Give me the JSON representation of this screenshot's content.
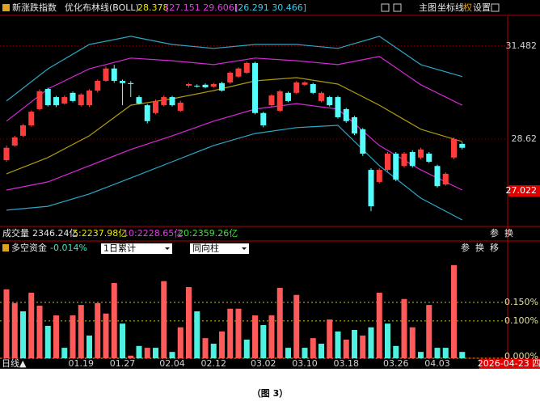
{
  "header": {
    "title": "新涨跌指数",
    "indicator": "优化布林线(BOLL)",
    "mid_value": "28.378",
    "inner_band": "[27.151 29.606]",
    "outer_band": "[26.291 30.466]",
    "tools": [
      "主图",
      "坐标线",
      "权",
      "设置"
    ]
  },
  "volume_row": {
    "label": "成交量",
    "items": [
      {
        "text": "2346.24亿",
        "color": "#e8e8e8"
      },
      {
        "text": "5:2237.98亿",
        "color": "#e8e800"
      },
      {
        "text": "10:2228.65亿",
        "color": "#e040e0"
      },
      {
        "text": "20:2359.26亿",
        "color": "#40e040"
      }
    ],
    "tools": [
      "参",
      "换"
    ]
  },
  "fund_header": {
    "title": "多空资金",
    "value": "-0.014%",
    "dropdowns": [
      "1日累计",
      "同向柱"
    ],
    "tools": [
      "参",
      "换",
      "移"
    ]
  },
  "footer": {
    "period": "日线▲",
    "date": "2026-04-23 四",
    "caption": "（图 3）"
  },
  "chart_data": [
    {
      "type": "candlestick",
      "up_color": "#ff3c3c",
      "down_color": "#54fcfc",
      "open": [
        27.97,
        28.42,
        28.72,
        29.04,
        29.54,
        30.16,
        29.91,
        29.71,
        30.04,
        29.66,
        29.66,
        30.11,
        30.41,
        30.79,
        30.41,
        30.34,
        29.91,
        29.66,
        29.42,
        29.66,
        29.91,
        29.49,
        30.26,
        30.26,
        30.29,
        30.23,
        30.34,
        30.36,
        30.54,
        30.66,
        30.96,
        29.42,
        29.66,
        29.49,
        30.04,
        30.04,
        30.29,
        30.31,
        29.79,
        29.91,
        29.91,
        29.54,
        29.29,
        28.92,
        27.67,
        27.3,
        27.67,
        28.17,
        27.79,
        28.22,
        28.05,
        28.17,
        27.79,
        27.22,
        28.05,
        28.47
      ],
      "close": [
        28.35,
        28.67,
        29.04,
        29.46,
        30.09,
        29.66,
        29.66,
        29.91,
        29.79,
        29.99,
        30.11,
        30.41,
        30.79,
        30.41,
        30.34,
        30.31,
        29.71,
        29.17,
        29.79,
        29.91,
        29.66,
        29.74,
        30.31,
        30.24,
        30.21,
        30.31,
        30.11,
        30.66,
        30.79,
        30.96,
        29.42,
        29.04,
        29.96,
        30.09,
        29.79,
        30.36,
        30.36,
        30.04,
        30.04,
        29.66,
        29.29,
        29.17,
        28.79,
        28.17,
        26.55,
        27.67,
        28.17,
        27.37,
        28.17,
        27.79,
        28.3,
        27.92,
        27.17,
        27.55,
        28.62,
        28.35
      ],
      "high": [
        28.42,
        28.72,
        29.08,
        29.5,
        30.15,
        30.2,
        29.95,
        29.96,
        30.08,
        30.03,
        30.15,
        30.45,
        30.85,
        30.9,
        30.45,
        30.4,
        29.96,
        29.7,
        29.84,
        29.96,
        29.95,
        29.8,
        30.35,
        30.3,
        30.33,
        30.35,
        30.38,
        30.7,
        30.83,
        31.0,
        31.0,
        29.46,
        30.0,
        30.13,
        30.08,
        30.4,
        30.4,
        30.35,
        30.08,
        29.95,
        29.95,
        29.58,
        29.33,
        28.96,
        27.72,
        27.72,
        28.22,
        28.22,
        28.22,
        28.27,
        28.35,
        28.22,
        27.83,
        27.6,
        28.67,
        28.52
      ],
      "low": [
        27.92,
        28.38,
        28.68,
        29.0,
        29.5,
        29.62,
        29.6,
        29.68,
        29.75,
        29.62,
        29.6,
        30.05,
        30.38,
        30.35,
        29.66,
        29.91,
        29.68,
        29.1,
        29.38,
        29.62,
        29.62,
        29.45,
        30.2,
        30.2,
        30.18,
        30.2,
        30.08,
        30.32,
        30.5,
        30.62,
        29.38,
        28.98,
        29.62,
        29.45,
        29.75,
        30.0,
        30.25,
        30.0,
        29.75,
        29.62,
        29.25,
        29.12,
        28.74,
        28.1,
        26.4,
        27.25,
        27.62,
        27.32,
        27.74,
        27.74,
        28.0,
        27.88,
        27.12,
        27.18,
        28.0,
        28.3
      ],
      "bands": [
        {
          "color": "#2aa8c8",
          "x": [
            0,
            5,
            10,
            15,
            20,
            25,
            30,
            35,
            40,
            45,
            50,
            55
          ],
          "values": [
            29.79,
            30.78,
            31.53,
            31.78,
            31.53,
            31.41,
            31.53,
            31.53,
            31.41,
            31.78,
            30.91,
            30.54
          ]
        },
        {
          "color": "#d828d8",
          "x": [
            0,
            5,
            10,
            15,
            20,
            25,
            30,
            35,
            40,
            45,
            50,
            55
          ],
          "values": [
            29.17,
            30.16,
            30.78,
            31.11,
            31.03,
            30.91,
            31.11,
            31.03,
            30.91,
            31.16,
            30.29,
            29.66
          ]
        },
        {
          "color": "#b09a10",
          "x": [
            0,
            5,
            10,
            15,
            20,
            25,
            30,
            35,
            40,
            45,
            50,
            55
          ],
          "values": [
            27.55,
            28.05,
            28.72,
            29.66,
            29.86,
            30.11,
            30.41,
            30.51,
            30.31,
            29.66,
            28.92,
            28.54
          ]
        },
        {
          "color": "#d828d8",
          "x": [
            0,
            5,
            10,
            15,
            20,
            25,
            30,
            35,
            40,
            45,
            50,
            55
          ],
          "values": [
            27.05,
            27.3,
            27.8,
            28.3,
            28.72,
            29.17,
            29.54,
            29.71,
            29.54,
            28.42,
            27.67,
            27.05
          ]
        },
        {
          "color": "#2aa8c8",
          "x": [
            0,
            5,
            10,
            15,
            20,
            25,
            30,
            35,
            40,
            45,
            50,
            55
          ],
          "values": [
            26.43,
            26.55,
            26.93,
            27.42,
            27.92,
            28.42,
            28.79,
            28.97,
            29.04,
            27.8,
            26.8,
            26.13
          ]
        }
      ],
      "ylim": [
        25.93,
        32.4
      ],
      "yticks": [
        31.482,
        28.62
      ],
      "grid": true,
      "highlight_label": 27.022
    },
    {
      "type": "bar",
      "categories": [
        null,
        null,
        null,
        null,
        null,
        null,
        null,
        null,
        null,
        "01.19",
        null,
        null,
        null,
        null,
        "01.27",
        null,
        null,
        null,
        null,
        null,
        "02.04",
        null,
        null,
        null,
        null,
        "02.12",
        null,
        null,
        null,
        null,
        null,
        "03.02",
        null,
        null,
        null,
        null,
        "03.10",
        null,
        null,
        null,
        null,
        "03.18",
        null,
        null,
        null,
        null,
        null,
        "03.26",
        null,
        null,
        null,
        null,
        "04.03",
        null,
        null,
        null
      ],
      "values": [
        0.185,
        0.148,
        0.126,
        0.176,
        0.141,
        0.087,
        0.115,
        0.028,
        0.115,
        0.143,
        0.061,
        0.148,
        0.12,
        0.202,
        0.093,
        0.007,
        0.033,
        0.028,
        0.028,
        0.207,
        0.017,
        0.083,
        0.191,
        0.126,
        0.054,
        0.039,
        0.072,
        0.133,
        0.133,
        0.05,
        0.115,
        0.089,
        0.115,
        0.189,
        0.028,
        0.17,
        0.028,
        0.054,
        0.039,
        0.104,
        0.072,
        0.05,
        0.076,
        0.061,
        0.083,
        0.176,
        0.093,
        0.033,
        0.159,
        0.083,
        0.017,
        0.143,
        0.028,
        0.028,
        0.25,
        0.017
      ],
      "colors": [
        "#ff5a5a",
        "#ff5a5a",
        "#4ff0e0",
        "#ff5a5a",
        "#ff5a5a",
        "#4ff0e0",
        "#ff5a5a",
        "#4ff0e0",
        "#ff5a5a",
        "#ff5a5a",
        "#4ff0e0",
        "#ff5a5a",
        "#ff5a5a",
        "#ff5a5a",
        "#4ff0e0",
        "#ff5a5a",
        "#4ff0e0",
        "#ff5a5a",
        "#4ff0e0",
        "#ff5a5a",
        "#4ff0e0",
        "#ff5a5a",
        "#ff5a5a",
        "#4ff0e0",
        "#ff5a5a",
        "#4ff0e0",
        "#ff5a5a",
        "#ff5a5a",
        "#ff5a5a",
        "#4ff0e0",
        "#ff5a5a",
        "#4ff0e0",
        "#ff5a5a",
        "#ff5a5a",
        "#4ff0e0",
        "#ff5a5a",
        "#4ff0e0",
        "#ff5a5a",
        "#4ff0e0",
        "#ff5a5a",
        "#4ff0e0",
        "#ff5a5a",
        "#4ff0e0",
        "#ff5a5a",
        "#4ff0e0",
        "#ff5a5a",
        "#4ff0e0",
        "#4ff0e0",
        "#ff5a5a",
        "#ff5a5a",
        "#4ff0e0",
        "#ff5a5a",
        "#4ff0e0",
        "#4ff0e0",
        "#ff5a5a",
        "#4ff0e0"
      ],
      "ylim": [
        0,
        0.267
      ],
      "yticks": [
        {
          "value": 0.15,
          "label": "0.150%"
        },
        {
          "value": 0.1,
          "label": "0.100%"
        },
        {
          "value": 0,
          "label": "0.000%"
        }
      ],
      "grid": true
    }
  ]
}
